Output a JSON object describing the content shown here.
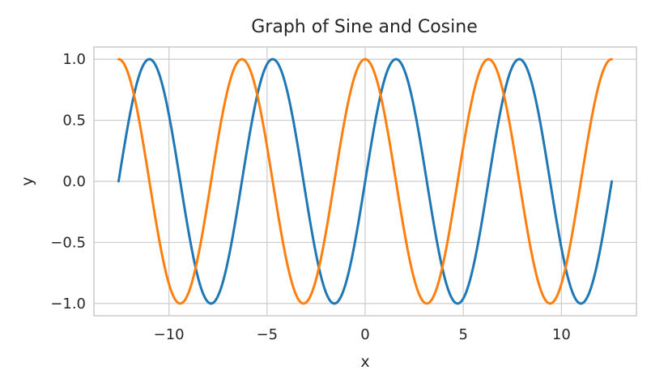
{
  "chart_data": {
    "type": "line",
    "title": "Graph of Sine and Cosine",
    "xlabel": "x",
    "ylabel": "y",
    "xlim": [
      -13.823,
      13.823
    ],
    "ylim": [
      -1.1,
      1.1
    ],
    "xticks": [
      -10,
      -5,
      0,
      5,
      10
    ],
    "xtick_labels": [
      "−10",
      "−5",
      "0",
      "5",
      "10"
    ],
    "yticks": [
      -1.0,
      -0.5,
      0.0,
      0.5,
      1.0
    ],
    "ytick_labels": [
      "−1.0",
      "−0.5",
      "0.0",
      "0.5",
      "1.0"
    ],
    "grid": true,
    "x_range": [
      -12.566,
      12.566
    ],
    "series": [
      {
        "function": "sin(x)",
        "color": "#1f77b4"
      },
      {
        "function": "cos(x)",
        "color": "#ff7f0e"
      }
    ]
  }
}
